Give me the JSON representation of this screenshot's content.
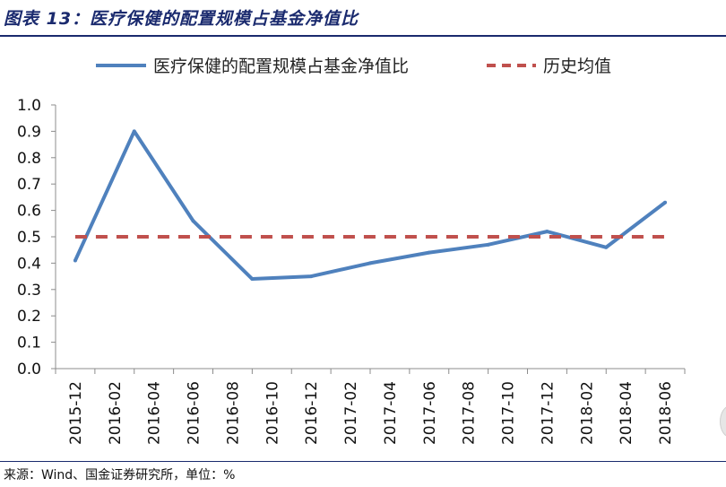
{
  "figure": {
    "title": "图表 13：医疗保健的配置规模占基金净值比",
    "source": "来源：Wind、国金证券研究所，单位：%"
  },
  "colors": {
    "series_line": "#4f81bd",
    "average_line": "#c0504d",
    "title": "#1a2a6e",
    "axis": "#8c8c8c"
  },
  "chart_data": {
    "type": "line",
    "title": "医疗保健的配置规模占基金净值比",
    "xlabel": "",
    "ylabel": "",
    "ylim": [
      0.0,
      1.0
    ],
    "yticks": [
      "0.0",
      "0.1",
      "0.2",
      "0.3",
      "0.4",
      "0.5",
      "0.6",
      "0.7",
      "0.8",
      "0.9",
      "1.0"
    ],
    "categories": [
      "2015-12",
      "2016-02",
      "2016-04",
      "2016-06",
      "2016-08",
      "2016-10",
      "2016-12",
      "2017-02",
      "2017-04",
      "2017-06",
      "2017-08",
      "2017-10",
      "2017-12",
      "2018-02",
      "2018-04",
      "2018-06"
    ],
    "legend_position": "top",
    "series": [
      {
        "name": "医疗保健的配置规模占基金净值比",
        "style": "solid",
        "points": [
          {
            "x": "2015-12",
            "y": 0.41
          },
          {
            "x": "2016-03",
            "y": 0.9
          },
          {
            "x": "2016-06",
            "y": 0.56
          },
          {
            "x": "2016-09",
            "y": 0.34
          },
          {
            "x": "2016-12",
            "y": 0.35
          },
          {
            "x": "2017-03",
            "y": 0.4
          },
          {
            "x": "2017-06",
            "y": 0.44
          },
          {
            "x": "2017-09",
            "y": 0.47
          },
          {
            "x": "2017-12",
            "y": 0.52
          },
          {
            "x": "2018-03",
            "y": 0.46
          },
          {
            "x": "2018-06",
            "y": 0.63
          }
        ]
      },
      {
        "name": "历史均值",
        "style": "dashed",
        "points": [
          {
            "x": "2015-12",
            "y": 0.5
          },
          {
            "x": "2018-06",
            "y": 0.5
          }
        ]
      }
    ]
  }
}
